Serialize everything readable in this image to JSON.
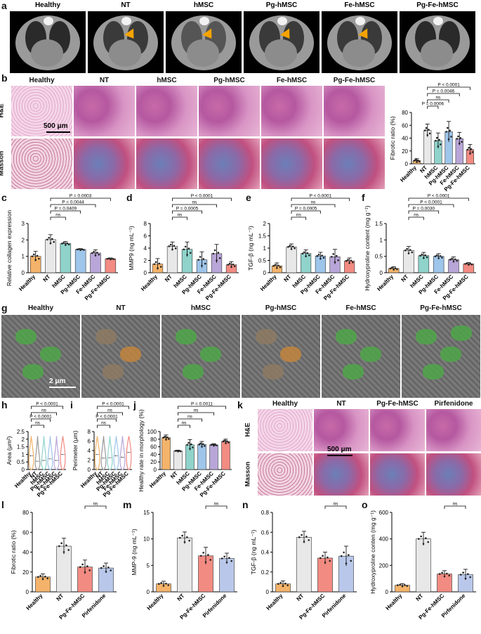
{
  "panels": {
    "a": {
      "label": "a",
      "groups": [
        "Healthy",
        "NT",
        "hMSC",
        "Pg-hMSC",
        "Fe-hMSC",
        "Pg-Fe-hMSC"
      ]
    },
    "b": {
      "label": "b",
      "groups": [
        "Healthy",
        "NT",
        "hMSC",
        "Pg-hMSC",
        "Fe-hMSC",
        "Pg-Fe-hMSC"
      ],
      "rows": [
        "H&E",
        "Masson"
      ],
      "scale": "500 μm"
    },
    "g": {
      "label": "g",
      "groups": [
        "Healthy",
        "NT",
        "hMSC",
        "Pg-hMSC",
        "Fe-hMSC",
        "Pg-Fe-hMSC"
      ],
      "scale": "2 μm"
    },
    "k": {
      "label": "k",
      "groups": [
        "Healthy",
        "NT",
        "Pg-Fe-hMSC",
        "Pirfenidone"
      ],
      "rows": [
        "H&E",
        "Masson"
      ],
      "scale": "500 μm"
    }
  },
  "colors": {
    "Healthy": "#f4b36a",
    "NT": "#e8e8e8",
    "hMSC": "#8fd3cb",
    "Pg-hMSC": "#9ec5ea",
    "Fe-hMSC": "#b9a6d8",
    "Pg-Fe-hMSC": "#f28b82",
    "Pirfenidone": "#b9c8ea"
  },
  "chart_data": [
    {
      "id": "b_chart",
      "type": "bar",
      "panel": "b",
      "categories": [
        "Healthy",
        "NT",
        "hMSC",
        "Pg-hMSC",
        "Fe-hMSC",
        "Pg-Fe-hMSC"
      ],
      "values": [
        5,
        52,
        36,
        50,
        39,
        22
      ],
      "errors": [
        3,
        10,
        12,
        16,
        10,
        8
      ],
      "ylabel": "Fibrotic ratio (%)",
      "ylim": [
        0,
        80
      ],
      "yticks": [
        0,
        20,
        40,
        60,
        80
      ],
      "brackets": [
        {
          "from": 1,
          "to": 5,
          "text": "P < 0.0001"
        },
        {
          "from": 1,
          "to": 4,
          "text": "P = 0.0046"
        },
        {
          "from": 1,
          "to": 3,
          "text": "ns"
        },
        {
          "from": 1,
          "to": 2,
          "text": "P = 0.0006"
        }
      ]
    },
    {
      "id": "c_chart",
      "type": "bar",
      "panel": "c",
      "categories": [
        "Healthy",
        "NT",
        "hMSC",
        "Pg-hMSC",
        "Fe-hMSC",
        "Pg-Fe-hMSC"
      ],
      "values": [
        1.0,
        2.02,
        1.78,
        1.42,
        1.2,
        0.85
      ],
      "errors": [
        0.3,
        0.3,
        0.12,
        0.05,
        0.2,
        0.05
      ],
      "ylabel": "Relative collagen expression",
      "ylim": [
        0,
        3
      ],
      "yticks": [
        0,
        1,
        2,
        3
      ],
      "brackets": [
        {
          "from": 1,
          "to": 5,
          "text": "P = 0.0003"
        },
        {
          "from": 1,
          "to": 4,
          "text": "P = 0.0044"
        },
        {
          "from": 1,
          "to": 3,
          "text": "P = 0.0409"
        },
        {
          "from": 1,
          "to": 2,
          "text": "ns"
        }
      ]
    },
    {
      "id": "d_chart",
      "type": "bar",
      "panel": "d",
      "categories": [
        "Healthy",
        "NT",
        "hMSC",
        "Pg-hMSC",
        "Fe-hMSC",
        "Pg-Fe-hMSC"
      ],
      "values": [
        1.4,
        4.3,
        3.8,
        2.1,
        3.1,
        1.3
      ],
      "errors": [
        0.9,
        0.7,
        1.2,
        1.3,
        1.5,
        0.5
      ],
      "ylabel": "MMP9 (ng mL⁻¹)",
      "ylim": [
        0,
        8
      ],
      "yticks": [
        0,
        2,
        4,
        6,
        8
      ],
      "brackets": [
        {
          "from": 1,
          "to": 5,
          "text": "P < 0.0001"
        },
        {
          "from": 1,
          "to": 4,
          "text": "ns"
        },
        {
          "from": 1,
          "to": 3,
          "text": "P = 0.0005"
        },
        {
          "from": 1,
          "to": 2,
          "text": "ns"
        }
      ]
    },
    {
      "id": "e_chart",
      "type": "bar",
      "panel": "e",
      "categories": [
        "Healthy",
        "NT",
        "hMSC",
        "Pg-hMSC",
        "Fe-hMSC",
        "Pg-Fe-hMSC"
      ],
      "values": [
        0.28,
        1.05,
        0.78,
        0.68,
        0.65,
        0.48
      ],
      "errors": [
        0.12,
        0.12,
        0.15,
        0.15,
        0.3,
        0.12
      ],
      "ylabel": "TGF-β (ng mL⁻¹)",
      "ylim": [
        0,
        2.0
      ],
      "yticks": [
        0,
        0.5,
        1.0,
        1.5,
        2.0
      ],
      "brackets": [
        {
          "from": 1,
          "to": 5,
          "text": "P < 0.0001"
        },
        {
          "from": 1,
          "to": 4,
          "text": "ns"
        },
        {
          "from": 1,
          "to": 3,
          "text": "P = 0.0005"
        },
        {
          "from": 1,
          "to": 2,
          "text": "ns"
        }
      ]
    },
    {
      "id": "f_chart",
      "type": "bar",
      "panel": "f",
      "categories": [
        "Healthy",
        "NT",
        "hMSC",
        "Pg-hMSC",
        "Fe-hMSC",
        "Pg-Fe-hMSC"
      ],
      "values": [
        0.13,
        0.68,
        0.52,
        0.5,
        0.4,
        0.27
      ],
      "errors": [
        0.05,
        0.12,
        0.1,
        0.08,
        0.08,
        0.04
      ],
      "ylabel": "Hydroxyproline content (mg g⁻¹)",
      "ylim": [
        0,
        1.5
      ],
      "yticks": [
        0,
        0.5,
        1.0,
        1.5
      ],
      "brackets": [
        {
          "from": 1,
          "to": 5,
          "text": "P < 0.0001"
        },
        {
          "from": 1,
          "to": 4,
          "text": "P < 0.0001"
        },
        {
          "from": 1,
          "to": 3,
          "text": "P = 0.0030"
        },
        {
          "from": 1,
          "to": 2,
          "text": "ns"
        }
      ]
    },
    {
      "id": "h_chart",
      "type": "violin",
      "panel": "h",
      "categories": [
        "Healthy",
        "NT",
        "hMSC",
        "Pg-hMSC",
        "Fe-hMSC",
        "Pg-Fe-hMSC"
      ],
      "values": [
        0.9,
        0.55,
        0.6,
        0.7,
        0.6,
        1.0
      ],
      "ylabel": "Area (μm²)",
      "ylim": [
        0,
        2.5
      ],
      "yticks": [
        0.0,
        0.5,
        1.0,
        1.5,
        2.0,
        2.5
      ],
      "brackets": [
        {
          "from": 0,
          "to": 5,
          "text": "P < 0.0001"
        },
        {
          "from": 0,
          "to": 4,
          "text": "ns"
        },
        {
          "from": 0,
          "to": 3,
          "text": "P < 0.0001"
        },
        {
          "from": 0,
          "to": 2,
          "text": "ns"
        }
      ]
    },
    {
      "id": "i_chart",
      "type": "violin",
      "panel": "i",
      "categories": [
        "Healthy",
        "NT",
        "hMSC",
        "Pg-hMSC",
        "Fe-hMSC",
        "Pg-Fe-hMSC"
      ],
      "values": [
        3.2,
        2.4,
        2.5,
        2.9,
        2.6,
        3.6
      ],
      "ylabel": "Perimeter (μm)",
      "ylim": [
        0,
        8
      ],
      "yticks": [
        0,
        2,
        4,
        6,
        8
      ],
      "brackets": [
        {
          "from": 0,
          "to": 5,
          "text": "P < 0.0001"
        },
        {
          "from": 0,
          "to": 4,
          "text": "ns"
        },
        {
          "from": 0,
          "to": 3,
          "text": "P < 0.0001"
        },
        {
          "from": 0,
          "to": 2,
          "text": "ns"
        }
      ]
    },
    {
      "id": "j_chart",
      "type": "bar",
      "panel": "j",
      "categories": [
        "Healthy",
        "NT",
        "hMSC",
        "Pg-hMSC",
        "Fe-hMSC",
        "Pg-Fe-hMSC"
      ],
      "values": [
        84,
        49,
        65,
        66,
        65,
        74
      ],
      "errors": [
        7,
        2,
        14,
        8,
        3,
        6
      ],
      "ylabel": "Healthy rate in morphology (%)",
      "ylim": [
        0,
        100
      ],
      "yticks": [
        0,
        20,
        40,
        60,
        80,
        100
      ],
      "brackets": [
        {
          "from": 1,
          "to": 5,
          "text": "P = 0.0011"
        },
        {
          "from": 1,
          "to": 4,
          "text": "ns"
        },
        {
          "from": 1,
          "to": 3,
          "text": "ns"
        },
        {
          "from": 1,
          "to": 2,
          "text": "ns"
        }
      ]
    },
    {
      "id": "l_chart",
      "type": "bar",
      "panel": "l",
      "categories": [
        "Healthy",
        "NT",
        "Pg-Fe-hMSC",
        "Pirfenidone"
      ],
      "values": [
        15,
        46,
        25,
        24
      ],
      "errors": [
        3,
        8,
        7,
        5
      ],
      "ylabel": "Fibrotic ratio (%)",
      "ylim": [
        0,
        80
      ],
      "yticks": [
        0,
        20,
        40,
        60,
        80
      ],
      "brackets": [
        {
          "from": 2,
          "to": 3,
          "text": "ns"
        }
      ]
    },
    {
      "id": "m_chart",
      "type": "bar",
      "panel": "m",
      "categories": [
        "Healthy",
        "NT",
        "Pg-Fe-hMSC",
        "Pirfenidone"
      ],
      "values": [
        1.5,
        10.2,
        6.8,
        6.3
      ],
      "errors": [
        0.5,
        1.1,
        1.6,
        1.0
      ],
      "ylabel": "MMP-9 (ng mL⁻¹)",
      "ylim": [
        0,
        15
      ],
      "yticks": [
        0,
        5,
        10,
        15
      ],
      "brackets": [
        {
          "from": 2,
          "to": 3,
          "text": "ns"
        }
      ]
    },
    {
      "id": "n_chart",
      "type": "bar",
      "panel": "n",
      "categories": [
        "Healthy",
        "NT",
        "Pg-Fe-hMSC",
        "Pirfenidone"
      ],
      "values": [
        0.08,
        0.55,
        0.34,
        0.36
      ],
      "errors": [
        0.03,
        0.06,
        0.06,
        0.1
      ],
      "ylabel": "TGF-β (ng mL⁻¹)",
      "ylim": [
        0,
        0.8
      ],
      "yticks": [
        0,
        0.2,
        0.4,
        0.6,
        0.8
      ],
      "brackets": [
        {
          "from": 2,
          "to": 3,
          "text": "ns"
        }
      ]
    },
    {
      "id": "o_chart",
      "type": "bar",
      "panel": "o",
      "categories": [
        "Healthy",
        "NT",
        "Pg-Fe-hMSC",
        "Pirfenidone"
      ],
      "values": [
        50,
        400,
        135,
        130
      ],
      "errors": [
        12,
        50,
        25,
        40
      ],
      "ylabel": "Hydroxyproline conten (mg g⁻¹)",
      "ylim": [
        0,
        600
      ],
      "yticks": [
        0,
        200,
        400,
        600
      ],
      "brackets": [
        {
          "from": 2,
          "to": 3,
          "text": "ns"
        }
      ]
    }
  ]
}
